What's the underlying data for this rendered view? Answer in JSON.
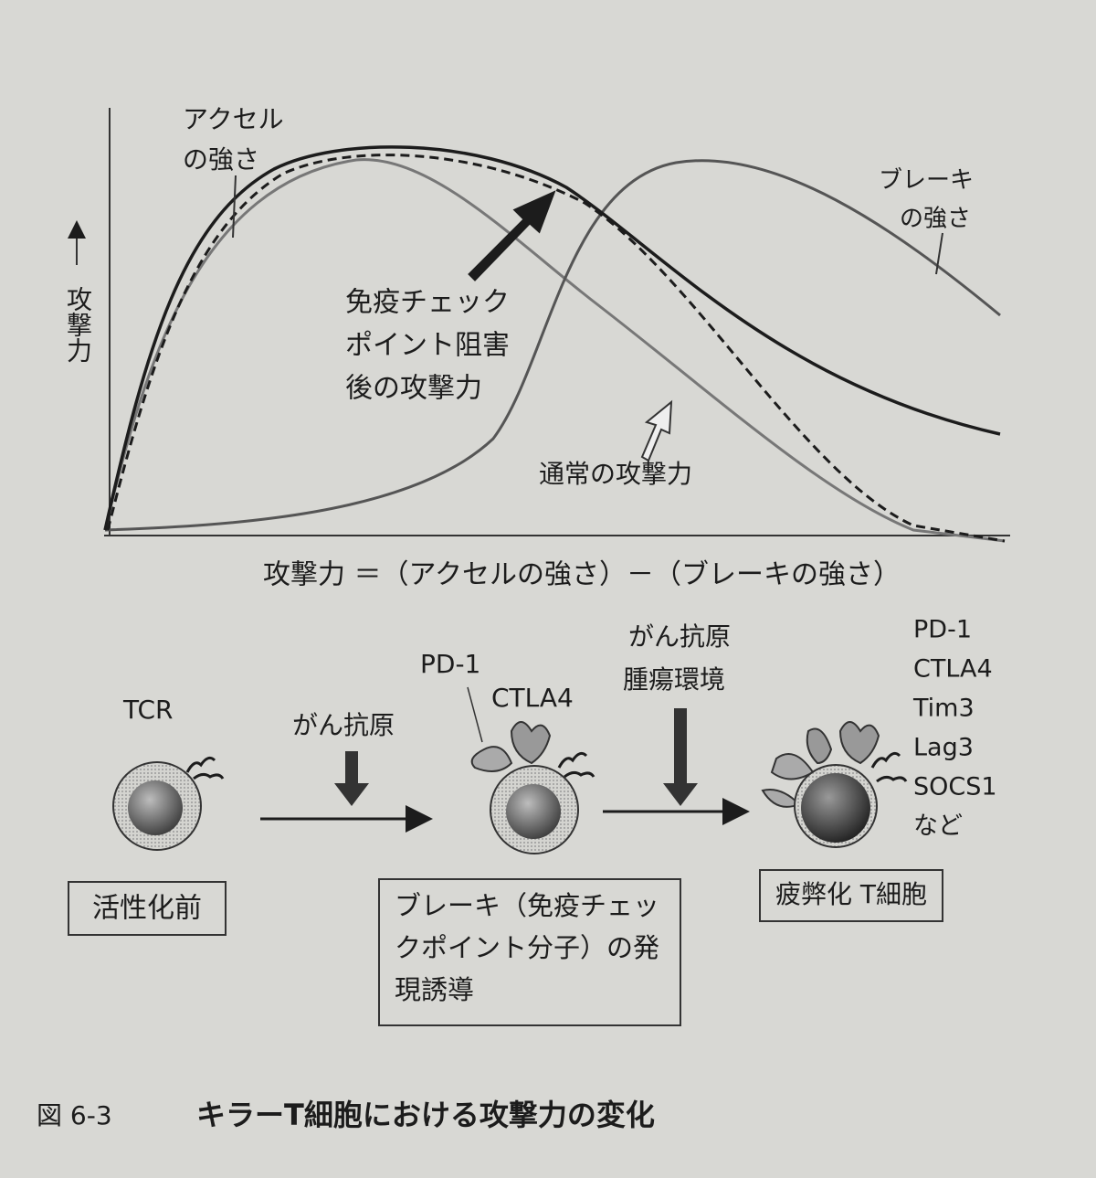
{
  "graph": {
    "y_axis_label": "攻撃力",
    "accelerator_label": [
      "アクセル",
      "の強さ"
    ],
    "brake_label": [
      "ブレーキ",
      "の強さ"
    ],
    "after_blockade_label": [
      "免疫チェック",
      "ポイント阻害",
      "後の攻撃力"
    ],
    "normal_label": "通常の攻撃力",
    "formula": "攻撃力 ＝（アクセルの強さ）－（ブレーキの強さ）"
  },
  "diagram": {
    "tcr": "TCR",
    "stage1_stimulus": "がん抗原",
    "stage2_receptors": [
      "PD-1",
      "CTLA4"
    ],
    "stage2_stimulus": [
      "がん抗原",
      "腫瘍環境"
    ],
    "stage3_receptors": [
      "PD-1",
      "CTLA4",
      "Tim3",
      "Lag3",
      "SOCS1",
      "など"
    ],
    "boxes": {
      "before": "活性化前",
      "induction": [
        "ブレーキ（免疫チェッ",
        "クポイント分子）の発",
        "現誘導"
      ],
      "exhausted": "疲弊化 T細胞"
    }
  },
  "caption": {
    "number": "図 6-3",
    "title": "キラーT細胞における攻撃力の変化"
  }
}
